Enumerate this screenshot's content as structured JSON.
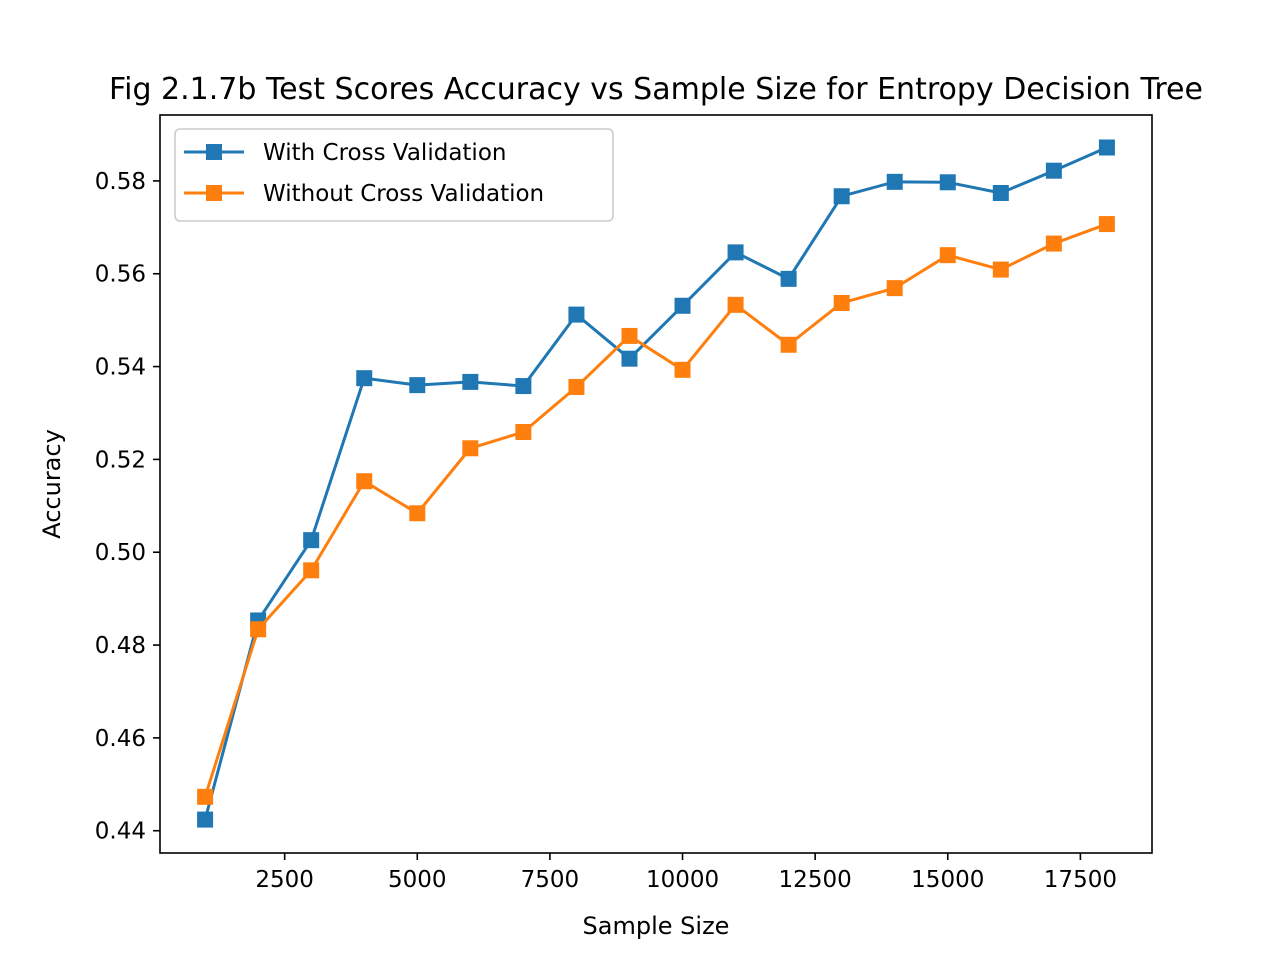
{
  "chart_data": {
    "type": "line",
    "title": "Fig 2.1.7b Test Scores Accuracy vs Sample Size for Entropy Decision Tree",
    "xlabel": "Sample Size",
    "ylabel": "Accuracy",
    "xlim": [
      150,
      18850
    ],
    "ylim": [
      0.4352,
      0.5942
    ],
    "xticks": [
      2500,
      5000,
      7500,
      10000,
      12500,
      15000,
      17500
    ],
    "xtick_labels": [
      "2500",
      "5000",
      "7500",
      "10000",
      "12500",
      "15000",
      "17500"
    ],
    "yticks": [
      0.44,
      0.46,
      0.48,
      0.5,
      0.52,
      0.54,
      0.56,
      0.58
    ],
    "ytick_labels": [
      "0.44",
      "0.46",
      "0.48",
      "0.50",
      "0.52",
      "0.54",
      "0.56",
      "0.58"
    ],
    "grid": false,
    "legend_position": "top-left",
    "x": [
      1000,
      2000,
      3000,
      4000,
      5000,
      6000,
      7000,
      8000,
      9000,
      10000,
      11000,
      12000,
      13000,
      14000,
      15000,
      16000,
      17000,
      18000
    ],
    "series": [
      {
        "name": "With Cross Validation",
        "color": "#1f77b4",
        "marker": "square",
        "values": [
          0.4424,
          0.4853,
          0.5026,
          0.5375,
          0.536,
          0.5367,
          0.5358,
          0.5512,
          0.5417,
          0.5531,
          0.5646,
          0.5589,
          0.5767,
          0.5798,
          0.5797,
          0.5774,
          0.5822,
          0.5872
        ]
      },
      {
        "name": "Without Cross Validation",
        "color": "#ff7f0e",
        "marker": "square",
        "values": [
          0.4473,
          0.4834,
          0.4961,
          0.5153,
          0.5084,
          0.5224,
          0.5259,
          0.5356,
          0.5466,
          0.5393,
          0.5533,
          0.5447,
          0.5537,
          0.5569,
          0.564,
          0.5609,
          0.5665,
          0.5707
        ]
      }
    ]
  }
}
